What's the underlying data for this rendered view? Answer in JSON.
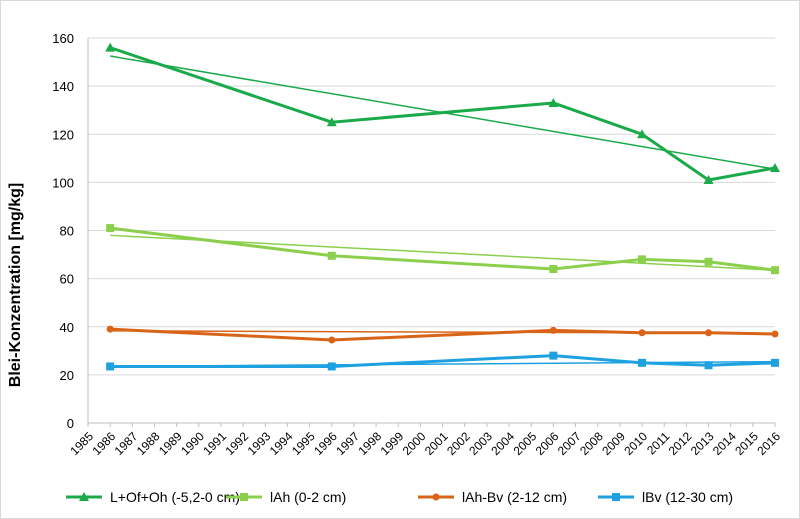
{
  "chart_data": {
    "type": "line",
    "title": "",
    "ylabel": "Blei-Konzentration [mg/kg]",
    "xlabel": "",
    "ylim": [
      0,
      160
    ],
    "yticks": [
      0,
      20,
      40,
      60,
      80,
      100,
      120,
      140,
      160
    ],
    "xlim": [
      1985,
      2016
    ],
    "xticks": [
      1985,
      1986,
      1987,
      1988,
      1989,
      1990,
      1991,
      1992,
      1993,
      1994,
      1995,
      1996,
      1997,
      1998,
      1999,
      2000,
      2001,
      2002,
      2003,
      2004,
      2005,
      2006,
      2007,
      2008,
      2009,
      2010,
      2011,
      2012,
      2013,
      2014,
      2015,
      2016
    ],
    "grid": true,
    "legend_position": "bottom",
    "series": [
      {
        "name": "L+Of+Oh (-5,2-0 cm)",
        "color": "#1aaa4a",
        "marker": "triangle",
        "x": [
          1986,
          1996,
          2006,
          2010,
          2013,
          2016
        ],
        "y": [
          156,
          125,
          133,
          120,
          101,
          106
        ],
        "trend": [
          152.5,
          105.5
        ]
      },
      {
        "name": "lAh (0-2 cm)",
        "color": "#8ccf4d",
        "marker": "square",
        "x": [
          1986,
          1996,
          2006,
          2010,
          2013,
          2016
        ],
        "y": [
          81,
          69.5,
          64,
          68,
          67,
          63.5
        ],
        "trend": [
          78,
          63.5
        ]
      },
      {
        "name": "lAh-Bv (2-12 cm)",
        "color": "#d86418",
        "marker": "circle",
        "x": [
          1986,
          1996,
          2006,
          2010,
          2013,
          2016
        ],
        "y": [
          39,
          34.5,
          38.5,
          37.5,
          37.5,
          37
        ],
        "trend": [
          38.3,
          37.3
        ]
      },
      {
        "name": "lBv (12-30 cm)",
        "color": "#1ea1e0",
        "marker": "square",
        "x": [
          1986,
          1996,
          2006,
          2010,
          2013,
          2016
        ],
        "y": [
          23.5,
          23.5,
          28,
          25,
          24,
          25
        ],
        "trend": [
          23.5,
          25.5
        ]
      }
    ]
  }
}
